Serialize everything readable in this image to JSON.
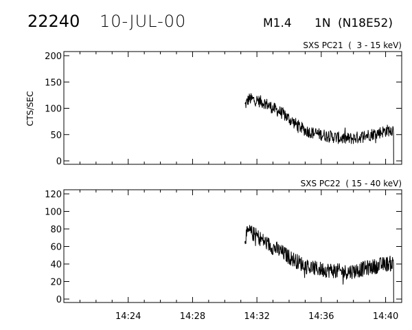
{
  "header": {
    "flare_id": "22240",
    "date": "10-JUL-00",
    "goes_class": "M1.4",
    "h_alpha_class": "1N",
    "location": "(N18E52)"
  },
  "chart_data": [
    {
      "type": "line",
      "title": "SXS PC21  (  3 - 15 keV)",
      "xlabel": "",
      "ylabel": "CTS/SEC",
      "x_ticks": [
        "14:24",
        "14:28",
        "14:32",
        "14:36",
        "14:40"
      ],
      "xlim": [
        "14:20:00",
        "14:41:00"
      ],
      "ylim": [
        0,
        200
      ],
      "y_ticks": [
        0,
        50,
        100,
        150,
        200
      ],
      "data_start": "14:31:15",
      "data_end": "14:40:30",
      "series": [
        {
          "x": [
            "14:31:15",
            "14:31:30",
            "14:32:00",
            "14:32:30",
            "14:33:00",
            "14:33:30",
            "14:34:00",
            "14:34:30",
            "14:35:00",
            "14:35:30",
            "14:36:00",
            "14:36:30",
            "14:37:00",
            "14:37:30",
            "14:38:00",
            "14:38:30",
            "14:39:00",
            "14:39:30",
            "14:40:00",
            "14:40:30"
          ],
          "y": [
            105,
            118,
            115,
            110,
            100,
            92,
            80,
            68,
            58,
            53,
            50,
            47,
            44,
            42,
            43,
            46,
            50,
            53,
            57,
            60
          ],
          "noise": 12
        }
      ]
    },
    {
      "type": "line",
      "title": "SXS PC22  ( 15 - 40 keV)",
      "xlabel": "",
      "ylabel": "",
      "x_ticks": [
        "14:24",
        "14:28",
        "14:32",
        "14:36",
        "14:40"
      ],
      "xlim": [
        "14:20:00",
        "14:41:00"
      ],
      "ylim": [
        0,
        120
      ],
      "y_ticks": [
        0,
        20,
        40,
        60,
        80,
        100,
        120
      ],
      "data_start": "14:31:15",
      "data_end": "14:40:30",
      "series": [
        {
          "x": [
            "14:31:15",
            "14:31:30",
            "14:32:00",
            "14:32:30",
            "14:33:00",
            "14:33:30",
            "14:34:00",
            "14:34:30",
            "14:35:00",
            "14:35:30",
            "14:36:00",
            "14:36:30",
            "14:37:00",
            "14:37:30",
            "14:38:00",
            "14:38:30",
            "14:39:00",
            "14:39:30",
            "14:40:00",
            "14:40:30"
          ],
          "y": [
            70,
            77,
            72,
            65,
            59,
            54,
            48,
            43,
            38,
            35,
            34,
            33,
            32,
            31,
            32,
            34,
            36,
            38,
            40,
            41
          ],
          "noise": 9
        }
      ]
    }
  ]
}
